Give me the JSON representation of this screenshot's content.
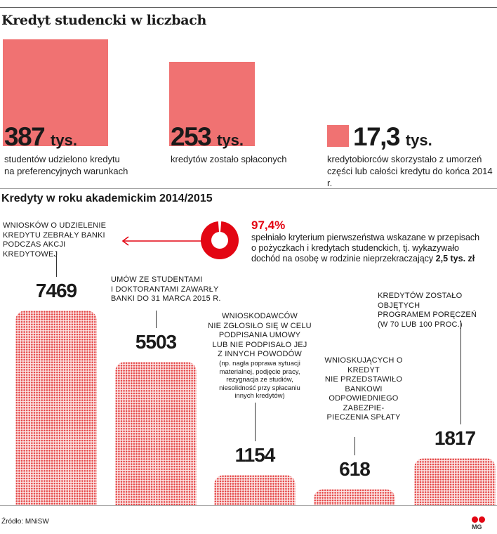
{
  "title": "Kredyt studencki w liczbach",
  "top_stats": [
    {
      "value": "387",
      "unit": "tys.",
      "desc": [
        "studentów udzielono kredytu",
        "na preferencyjnych warunkach"
      ],
      "size_ratio": 1.0
    },
    {
      "value": "253",
      "unit": "tys.",
      "desc": [
        "kredytów zostało spłaconych"
      ],
      "size_ratio": 0.81
    },
    {
      "value": "17,3",
      "unit": "tys.",
      "desc": [
        "kredytobiorców skorzystało z umorzeń",
        "części lub całości kredytu do końca 2014 r."
      ],
      "size_ratio": 0.21
    }
  ],
  "section_title": "Kredyty w roku akademickim 2014/2015",
  "percent": {
    "value": "97,4%",
    "fraction": 0.974,
    "text_line1": "spełniało kryterium pierwszeństwa wskazane w przepisach",
    "text_line2": "o pożyczkach i kredytach studenckich, tj. wykazywało",
    "text_line3": "dochód na osobę w rodzinie nieprzekraczający ",
    "text_bold": "2,5 tys. zł",
    "color": "#e30613"
  },
  "chart_data": {
    "type": "bar",
    "categories": [
      "Wniosków o udzielenie kredytu zebrały banki podczas akcji kredytowej",
      "Umów ze studentami i doktorantami zawarły banki do 31 marca 2015 r.",
      "Wnioskodawców nie zgłosiło się w celu podpisania umowy lub nie podpisało jej z innych powodów",
      "Wnioskujących o kredyt nie przedstawiło bankowi odpowiedniego zabezpieczenia spłaty",
      "Kredytów zostało objętych programem poręczeń (w 70 lub 100 proc.)"
    ],
    "values": [
      7469,
      5503,
      1154,
      618,
      1817
    ],
    "labels": [
      "7469",
      "5503",
      "1154",
      "618",
      "1817"
    ],
    "bar_color": "#e43c3c",
    "ylim": [
      0,
      7469
    ]
  },
  "bar_captions": {
    "b0": [
      "Wniosków o udzielenie",
      "kredytu zebrały banki",
      "podczas akcji kredytowej"
    ],
    "b1": [
      "Umów ze studentami",
      "i doktorantami zawarły",
      "banki do 31 marca 2015 r."
    ],
    "b2": [
      "Wnioskodawców",
      "nie zgłosiło się w celu",
      "podpisania umowy",
      "lub nie podpisało jej",
      "z innych powodów"
    ],
    "b2_note": [
      "(np. nagła poprawa sytuacji",
      "materialnej, podjęcie pracy,",
      "rezygnacja ze studiów,",
      "niesolidność przy spłacaniu",
      "innych kredytów)"
    ],
    "b3": [
      "Wnioskujących o kredyt",
      "nie przedstawiło bankowi",
      "odpowiedniego zabezpie-",
      "pieczenia spłaty"
    ],
    "b4": [
      "Kredytów zostało objętych",
      "programem poręczeń",
      "(w 70 lub 100 proc.)"
    ]
  },
  "source": "Źródło: MNiSW",
  "logo_text": "MG"
}
